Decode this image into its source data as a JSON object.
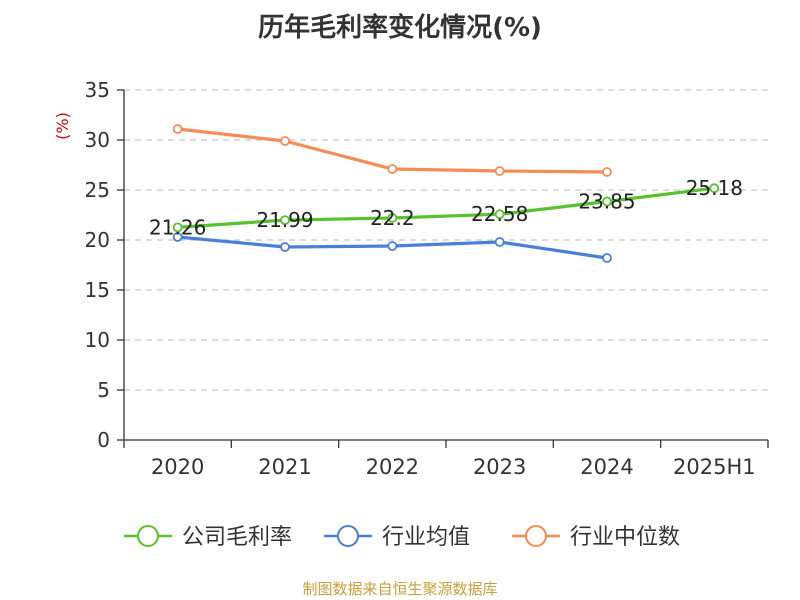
{
  "chart_data": {
    "type": "line",
    "title": "历年毛利率变化情况(%)",
    "unit_label": "(%)",
    "categories": [
      "2020",
      "2021",
      "2022",
      "2023",
      "2024",
      "2025H1"
    ],
    "ylim": [
      0,
      35
    ],
    "yticks": [
      "0",
      "5",
      "10",
      "15",
      "20",
      "25",
      "30",
      "35"
    ],
    "grid": true,
    "legend_position": "bottom",
    "series": [
      {
        "name": "公司毛利率",
        "color": "#58c22d",
        "values": [
          21.26,
          21.99,
          22.2,
          22.58,
          23.85,
          25.18
        ],
        "labels": [
          "21.26",
          "21.99",
          "22.2",
          "22.58",
          "23.85",
          "25.18"
        ]
      },
      {
        "name": "行业均值",
        "color": "#4a7fd8",
        "values": [
          20.3,
          19.3,
          19.4,
          19.8,
          18.2,
          null
        ]
      },
      {
        "name": "行业中位数",
        "color": "#f58c55",
        "values": [
          31.1,
          29.9,
          27.1,
          26.9,
          26.8,
          null
        ]
      }
    ]
  },
  "source": "制图数据来自恒生聚源数据库"
}
